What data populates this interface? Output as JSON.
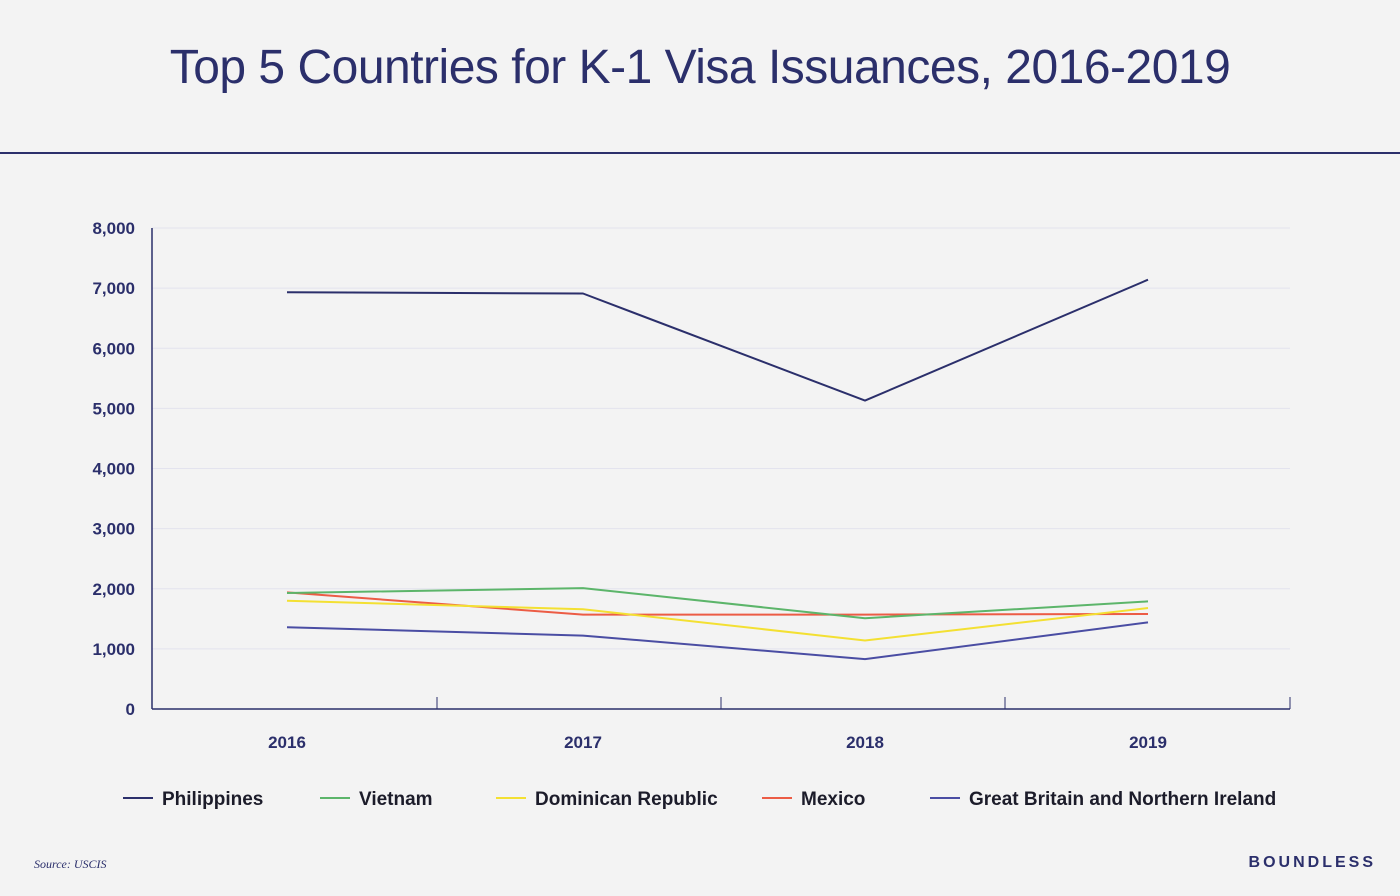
{
  "title": "Top 5 Countries for K-1 Visa Issuances, 2016-2019",
  "source": "Source: USCIS",
  "brand": "BOUNDLESS",
  "chart_data": {
    "type": "line",
    "title": "Top 5 Countries for K-1 Visa Issuances, 2016-2019",
    "xlabel": "",
    "ylabel": "",
    "categories": [
      "2016",
      "2017",
      "2018",
      "2019"
    ],
    "ylim": [
      0,
      8000
    ],
    "yticks": [
      0,
      1000,
      2000,
      3000,
      4000,
      5000,
      6000,
      7000,
      8000
    ],
    "ytick_labels": [
      "0",
      "1,000",
      "2,000",
      "3,000",
      "4,000",
      "5,000",
      "6,000",
      "7,000",
      "8,000"
    ],
    "grid": true,
    "legend_position": "bottom",
    "series": [
      {
        "name": "Philippines",
        "color": "#2b2f6b",
        "values": [
          6930,
          6910,
          5130,
          7140
        ]
      },
      {
        "name": "Vietnam",
        "color": "#5cb56a",
        "values": [
          1930,
          2010,
          1510,
          1790
        ]
      },
      {
        "name": "Dominican Republic",
        "color": "#f3e032",
        "values": [
          1800,
          1660,
          1140,
          1680
        ]
      },
      {
        "name": "Mexico",
        "color": "#ec5c45",
        "values": [
          1940,
          1570,
          1570,
          1580
        ]
      },
      {
        "name": "Great Britain and Northern Ireland",
        "color": "#4a4da3",
        "values": [
          1360,
          1220,
          830,
          1440
        ]
      }
    ]
  }
}
